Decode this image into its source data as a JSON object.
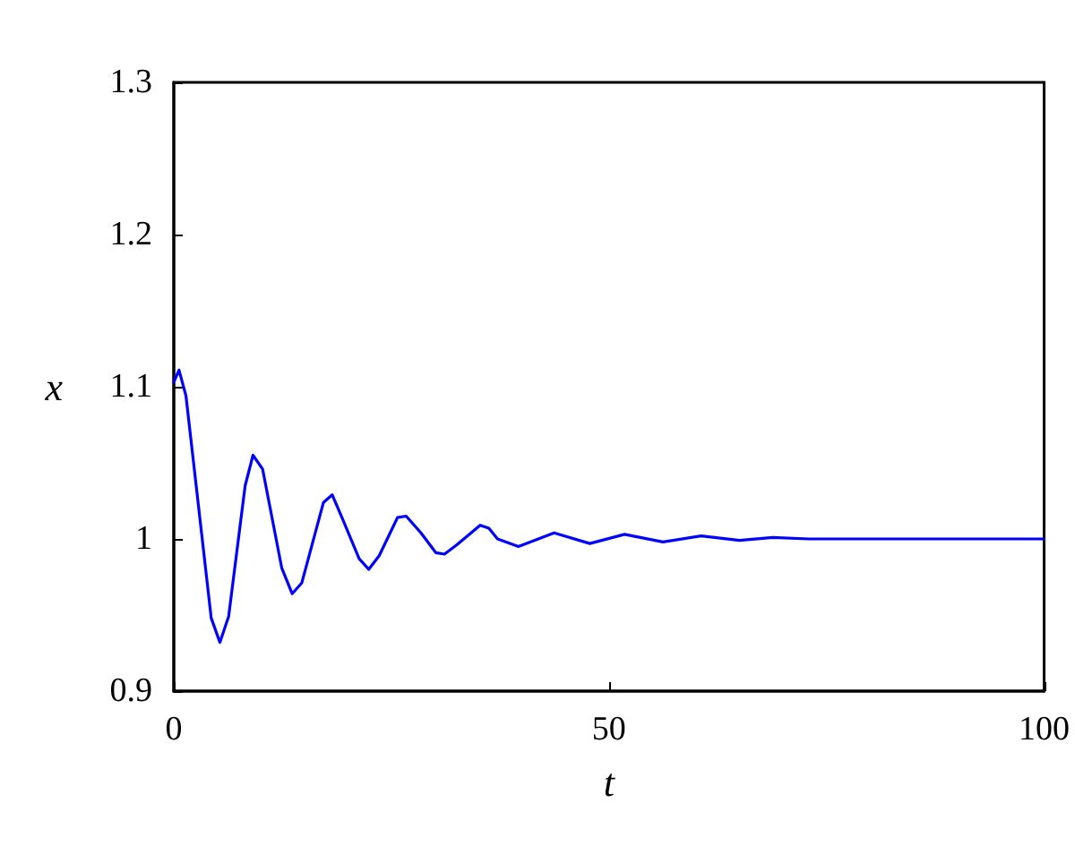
{
  "chart_data": {
    "type": "line",
    "xlabel": "t",
    "ylabel": "x",
    "series": [
      {
        "color": "#0000ff",
        "x": [
          0,
          0.6,
          1.4,
          4.3,
          5.3,
          6.3,
          8.2,
          9.1,
          10.2,
          12.4,
          13.6,
          14.7,
          17.2,
          18.2,
          19.4,
          21.3,
          22.4,
          23.6,
          25.7,
          26.7,
          28.4,
          30.1,
          31.1,
          32.5,
          35.2,
          36.2,
          37.2,
          39.6,
          43.7,
          47.8,
          51.8,
          56.2,
          60.6,
          65,
          68.8,
          73,
          80,
          90,
          100
        ],
        "values": [
          1.103,
          1.111,
          1.094,
          0.948,
          0.932,
          0.949,
          1.035,
          1.055,
          1.046,
          0.981,
          0.964,
          0.971,
          1.024,
          1.029,
          1.013,
          0.987,
          0.98,
          0.989,
          1.014,
          1.015,
          1.004,
          0.991,
          0.99,
          0.996,
          1.009,
          1.007,
          1.0,
          0.995,
          1.004,
          0.997,
          1.003,
          0.998,
          1.002,
          0.999,
          1.001,
          1.0,
          1.0,
          1.0,
          1.0
        ]
      }
    ],
    "xlim": [
      0,
      100
    ],
    "xticks": [
      0,
      50,
      100
    ],
    "ylim": [
      0.9,
      1.3
    ],
    "yticks": [
      0.9,
      1,
      1.1,
      1.2,
      1.3
    ],
    "grid": false,
    "marker": "none",
    "line_style": "solid"
  }
}
